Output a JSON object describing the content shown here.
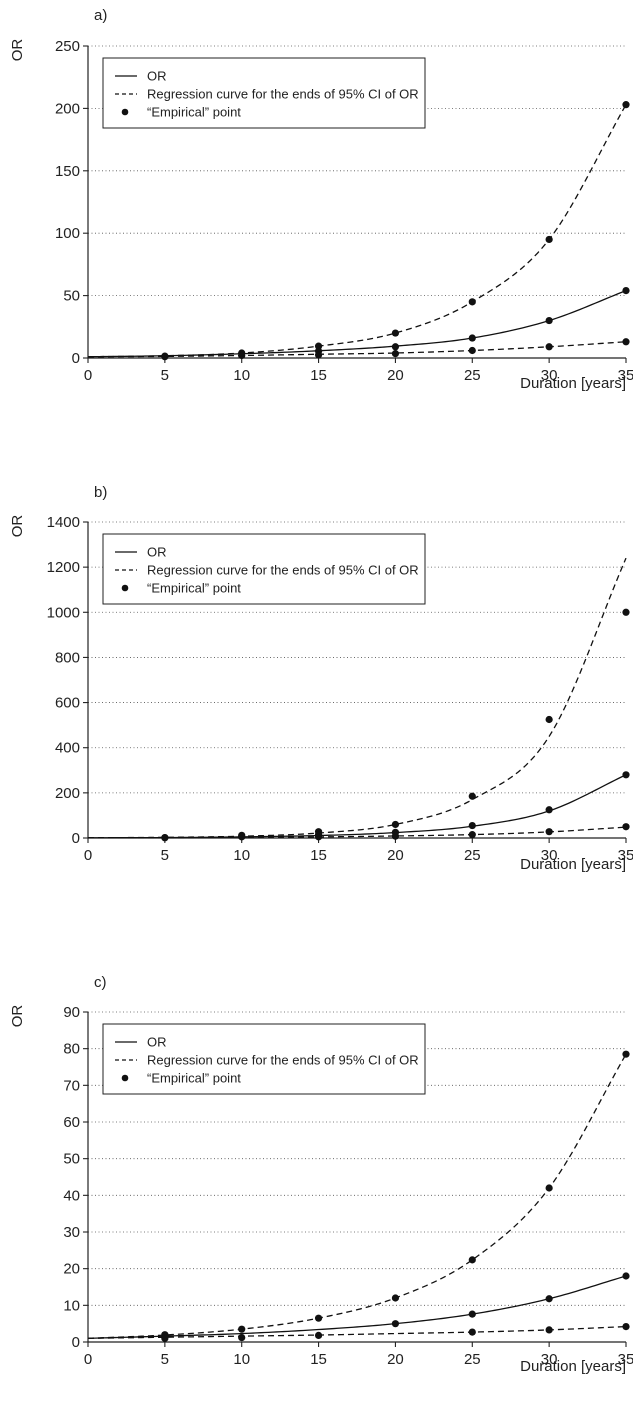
{
  "chart_data": [
    {
      "type": "line",
      "panel_label": "a)",
      "ylabel": "OR",
      "xlabel": "Duration [years]",
      "xlim": [
        0,
        35
      ],
      "ylim": [
        0,
        250
      ],
      "x_ticks": [
        "0",
        "5",
        "10",
        "15",
        "20",
        "25",
        "30",
        "35"
      ],
      "y_ticks": [
        "0",
        "50",
        "100",
        "150",
        "200",
        "250"
      ],
      "grid": "horizontal dotted",
      "legend": {
        "placement": "top-left",
        "entries": [
          "OR",
          "Regression curve for the ends of 95% CI of OR",
          "“Empirical” point"
        ]
      },
      "series": [
        {
          "name": "OR",
          "style": "solid",
          "x": [
            0,
            5,
            10,
            15,
            20,
            25,
            30,
            35
          ],
          "y": [
            1,
            1.8,
            3.4,
            5.8,
            9.5,
            16,
            30,
            54
          ]
        },
        {
          "name": "Regression curve for the ends of 95% CI of OR",
          "style": "dashed",
          "x": [
            0,
            5,
            10,
            15,
            20,
            25,
            30,
            35
          ],
          "y": [
            1,
            1.8,
            4,
            9.5,
            20,
            45,
            95,
            203
          ]
        },
        {
          "name": "Regression curve for the ends of 95% CI of OR",
          "style": "dashed",
          "x": [
            0,
            5,
            10,
            15,
            20,
            25,
            30,
            35
          ],
          "y": [
            1,
            1.3,
            2,
            3,
            4,
            6,
            9,
            13
          ]
        },
        {
          "name": "“Empirical” point",
          "style": "points",
          "x": [
            5,
            5,
            10,
            10,
            15,
            15,
            15,
            20,
            20,
            20,
            25,
            25,
            25,
            30,
            30,
            30,
            35,
            35,
            35
          ],
          "y": [
            1.5,
            1,
            4,
            2,
            9.5,
            5.5,
            2.5,
            20,
            9,
            3.5,
            45,
            16,
            6,
            95,
            30,
            9,
            203,
            54,
            13
          ]
        }
      ]
    },
    {
      "type": "line",
      "panel_label": "b)",
      "ylabel": "OR",
      "xlabel": "Duration [years]",
      "xlim": [
        0,
        35
      ],
      "ylim": [
        0,
        1400
      ],
      "x_ticks": [
        "0",
        "5",
        "10",
        "15",
        "20",
        "25",
        "30",
        "35"
      ],
      "y_ticks": [
        "0",
        "200",
        "400",
        "600",
        "800",
        "1000",
        "1200",
        "1400"
      ],
      "grid": "horizontal dotted",
      "legend": {
        "placement": "top-left",
        "entries": [
          "OR",
          "Regression curve for the ends of 95% CI of OR",
          "“Empirical” point"
        ]
      },
      "series": [
        {
          "name": "OR",
          "style": "solid",
          "x": [
            0,
            5,
            10,
            15,
            20,
            25,
            30,
            35
          ],
          "y": [
            1,
            2,
            5,
            11,
            24,
            52,
            120,
            280
          ]
        },
        {
          "name": "Regression curve for the ends of 95% CI of OR",
          "style": "dashed",
          "x": [
            0,
            5,
            10,
            15,
            20,
            25,
            30,
            35
          ],
          "y": [
            1,
            3,
            8,
            22,
            60,
            170,
            450,
            1240
          ]
        },
        {
          "name": "Regression curve for the ends of 95% CI of OR",
          "style": "dashed",
          "x": [
            0,
            5,
            10,
            15,
            20,
            25,
            30,
            35
          ],
          "y": [
            1,
            1.5,
            3,
            5,
            9,
            15,
            27,
            48
          ]
        },
        {
          "name": "“Empirical” point",
          "style": "points",
          "x": [
            5,
            5,
            10,
            10,
            15,
            15,
            15,
            20,
            20,
            20,
            25,
            25,
            25,
            30,
            30,
            30,
            35,
            35,
            35
          ],
          "y": [
            2,
            1,
            12,
            5,
            28,
            15,
            5,
            60,
            25,
            8,
            185,
            55,
            15,
            525,
            125,
            28,
            1000,
            280,
            50
          ]
        }
      ]
    },
    {
      "type": "line",
      "panel_label": "c)",
      "ylabel": "OR",
      "xlabel": "Duration [years]",
      "xlim": [
        0,
        35
      ],
      "ylim": [
        0,
        90
      ],
      "x_ticks": [
        "0",
        "5",
        "10",
        "15",
        "20",
        "25",
        "30",
        "35"
      ],
      "y_ticks": [
        "0",
        "10",
        "20",
        "30",
        "40",
        "50",
        "60",
        "70",
        "80",
        "90"
      ],
      "grid": "horizontal dotted",
      "legend": {
        "placement": "top-left",
        "entries": [
          "OR",
          "Regression curve for the ends of 95% CI of OR",
          "“Empirical” point"
        ]
      },
      "series": [
        {
          "name": "OR",
          "style": "solid",
          "x": [
            0,
            5,
            10,
            15,
            20,
            25,
            30,
            35
          ],
          "y": [
            1,
            1.6,
            2.3,
            3.4,
            5,
            7.6,
            11.8,
            18
          ]
        },
        {
          "name": "Regression curve for the ends of 95% CI of OR",
          "style": "dashed",
          "x": [
            0,
            5,
            10,
            15,
            20,
            25,
            30,
            35
          ],
          "y": [
            1,
            1.9,
            3.5,
            6.5,
            12,
            22.4,
            42,
            78.5
          ]
        },
        {
          "name": "Regression curve for the ends of 95% CI of OR",
          "style": "dashed",
          "x": [
            0,
            5,
            10,
            15,
            20,
            25,
            30,
            35
          ],
          "y": [
            1,
            1.3,
            1.6,
            1.9,
            2.3,
            2.7,
            3.3,
            4.2
          ]
        },
        {
          "name": "“Empirical” point",
          "style": "points",
          "x": [
            5,
            5,
            10,
            10,
            15,
            15,
            20,
            20,
            25,
            25,
            25,
            30,
            30,
            30,
            35,
            35,
            35
          ],
          "y": [
            2,
            1,
            3.5,
            1.2,
            6.5,
            1.8,
            12,
            5,
            22.4,
            7.6,
            2.7,
            42,
            11.8,
            3.3,
            78.5,
            18,
            4.2
          ]
        }
      ]
    }
  ]
}
